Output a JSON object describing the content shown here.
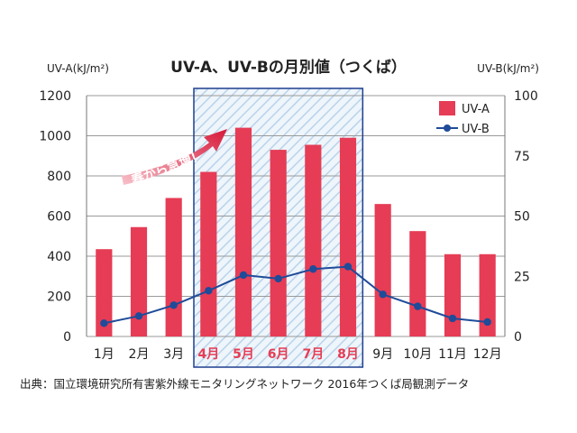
{
  "chart_data": {
    "type": "bar",
    "title": "UV-A、UV-Bの月別値（つくば）",
    "ylabel_left": "UV-A(kJ/m²)",
    "ylabel_right": "UV-B(kJ/m²)",
    "categories": [
      "1月",
      "2月",
      "3月",
      "4月",
      "5月",
      "6月",
      "7月",
      "8月",
      "9月",
      "10月",
      "11月",
      "12月"
    ],
    "highlight_categories": [
      "4月",
      "5月",
      "6月",
      "7月",
      "8月"
    ],
    "y_left": {
      "min": 0,
      "max": 1200,
      "ticks": [
        0,
        200,
        400,
        600,
        800,
        1000,
        1200
      ]
    },
    "y_right": {
      "min": 0,
      "max": 100,
      "ticks": [
        0,
        25,
        50,
        75,
        100
      ]
    },
    "series": [
      {
        "name": "UV-A",
        "type": "bar",
        "axis": "left",
        "color": "#e63c55",
        "values": [
          435,
          545,
          690,
          820,
          1040,
          930,
          955,
          990,
          660,
          525,
          410,
          410
        ]
      },
      {
        "name": "UV-B",
        "type": "line",
        "axis": "right",
        "color": "#1f4b99",
        "values": [
          5.5,
          8.5,
          13,
          19,
          25.5,
          24,
          28,
          29,
          17.5,
          12.5,
          7.5,
          6
        ]
      }
    ],
    "annotation": "春から急増！",
    "highlight_color": "#1f3f8f",
    "highlight_label_color": "#e63c55",
    "grid": "horizontal",
    "legend": "top-right",
    "source": "出典：国立環境研究所有害紫外線モニタリングネットワーク 2016年つくば局観測データ"
  }
}
